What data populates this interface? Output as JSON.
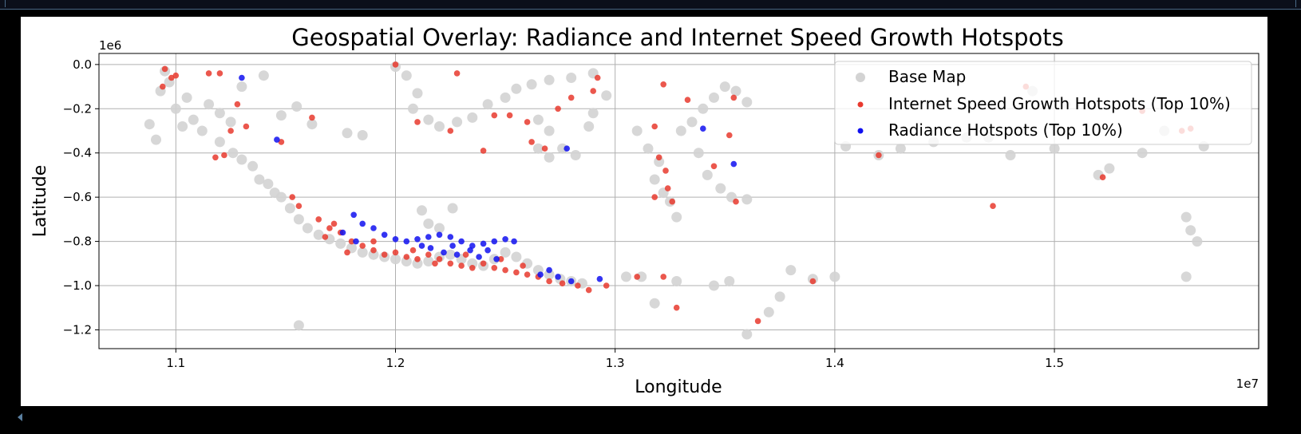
{
  "chart_data": {
    "type": "scatter",
    "title": "Geospatial Overlay: Radiance and Internet Speed Growth Hotspots",
    "xlabel": "Longitude",
    "ylabel": "Latitude",
    "x_offset_label": "1e7",
    "y_offset_label": "1e6",
    "xlim": [
      10650000,
      15930000
    ],
    "ylim": [
      -1285000,
      50000
    ],
    "x_ticks": [
      11000000,
      12000000,
      13000000,
      14000000,
      15000000
    ],
    "x_tick_labels": [
      "1.1",
      "1.2",
      "1.3",
      "1.4",
      "1.5"
    ],
    "y_ticks": [
      0,
      -200000,
      -400000,
      -600000,
      -800000,
      -1000000,
      -1200000
    ],
    "y_tick_labels": [
      "0.0",
      "−0.2",
      "−0.4",
      "−0.6",
      "−0.8",
      "−1.0",
      "−1.2"
    ],
    "grid": true,
    "legend_position": "top-right",
    "series": [
      {
        "name": "Base Map",
        "color": "#d3d3d3",
        "marker_size": "large",
        "points": [
          [
            10950000,
            -30000
          ],
          [
            10970000,
            -80000
          ],
          [
            10930000,
            -120000
          ],
          [
            11000000,
            -200000
          ],
          [
            11050000,
            -150000
          ],
          [
            11080000,
            -250000
          ],
          [
            11120000,
            -300000
          ],
          [
            11030000,
            -280000
          ],
          [
            10880000,
            -270000
          ],
          [
            10910000,
            -340000
          ],
          [
            11150000,
            -180000
          ],
          [
            11200000,
            -220000
          ],
          [
            11250000,
            -260000
          ],
          [
            11200000,
            -350000
          ],
          [
            11260000,
            -400000
          ],
          [
            11300000,
            -430000
          ],
          [
            11350000,
            -460000
          ],
          [
            11380000,
            -520000
          ],
          [
            11420000,
            -540000
          ],
          [
            11450000,
            -580000
          ],
          [
            11480000,
            -600000
          ],
          [
            11520000,
            -650000
          ],
          [
            11560000,
            -700000
          ],
          [
            11600000,
            -740000
          ],
          [
            11650000,
            -770000
          ],
          [
            11700000,
            -790000
          ],
          [
            11750000,
            -810000
          ],
          [
            11800000,
            -830000
          ],
          [
            11850000,
            -850000
          ],
          [
            11900000,
            -860000
          ],
          [
            11950000,
            -870000
          ],
          [
            12000000,
            -880000
          ],
          [
            12050000,
            -890000
          ],
          [
            12100000,
            -900000
          ],
          [
            12150000,
            -890000
          ],
          [
            12200000,
            -870000
          ],
          [
            12250000,
            -860000
          ],
          [
            12300000,
            -880000
          ],
          [
            12350000,
            -900000
          ],
          [
            12400000,
            -910000
          ],
          [
            12450000,
            -880000
          ],
          [
            12500000,
            -850000
          ],
          [
            12550000,
            -870000
          ],
          [
            12600000,
            -900000
          ],
          [
            12650000,
            -930000
          ],
          [
            12700000,
            -950000
          ],
          [
            12750000,
            -970000
          ],
          [
            12800000,
            -980000
          ],
          [
            12850000,
            -990000
          ],
          [
            12150000,
            -720000
          ],
          [
            12200000,
            -740000
          ],
          [
            12260000,
            -650000
          ],
          [
            12120000,
            -660000
          ],
          [
            11560000,
            -1180000
          ],
          [
            11400000,
            -50000
          ],
          [
            11300000,
            -100000
          ],
          [
            11480000,
            -230000
          ],
          [
            11550000,
            -190000
          ],
          [
            11620000,
            -270000
          ],
          [
            11780000,
            -310000
          ],
          [
            11850000,
            -320000
          ],
          [
            12000000,
            -10000
          ],
          [
            12050000,
            -50000
          ],
          [
            12100000,
            -130000
          ],
          [
            12080000,
            -200000
          ],
          [
            12150000,
            -250000
          ],
          [
            12200000,
            -280000
          ],
          [
            12280000,
            -260000
          ],
          [
            12350000,
            -240000
          ],
          [
            12420000,
            -180000
          ],
          [
            12500000,
            -150000
          ],
          [
            12550000,
            -110000
          ],
          [
            12620000,
            -90000
          ],
          [
            12700000,
            -70000
          ],
          [
            12800000,
            -60000
          ],
          [
            12900000,
            -40000
          ],
          [
            12650000,
            -250000
          ],
          [
            12700000,
            -300000
          ],
          [
            12650000,
            -380000
          ],
          [
            12700000,
            -420000
          ],
          [
            12760000,
            -380000
          ],
          [
            12820000,
            -410000
          ],
          [
            12880000,
            -280000
          ],
          [
            12900000,
            -220000
          ],
          [
            12960000,
            -140000
          ],
          [
            13100000,
            -300000
          ],
          [
            13150000,
            -380000
          ],
          [
            13200000,
            -440000
          ],
          [
            13180000,
            -520000
          ],
          [
            13220000,
            -580000
          ],
          [
            13250000,
            -620000
          ],
          [
            13280000,
            -690000
          ],
          [
            13300000,
            -300000
          ],
          [
            13350000,
            -260000
          ],
          [
            13400000,
            -200000
          ],
          [
            13450000,
            -150000
          ],
          [
            13500000,
            -100000
          ],
          [
            13550000,
            -120000
          ],
          [
            13600000,
            -170000
          ],
          [
            13380000,
            -400000
          ],
          [
            13420000,
            -500000
          ],
          [
            13480000,
            -560000
          ],
          [
            13530000,
            -600000
          ],
          [
            13600000,
            -610000
          ],
          [
            13050000,
            -960000
          ],
          [
            13120000,
            -960000
          ],
          [
            13180000,
            -1080000
          ],
          [
            13280000,
            -980000
          ],
          [
            13450000,
            -1000000
          ],
          [
            13520000,
            -980000
          ],
          [
            13700000,
            -1120000
          ],
          [
            13750000,
            -1050000
          ],
          [
            13800000,
            -930000
          ],
          [
            13900000,
            -970000
          ],
          [
            14000000,
            -960000
          ],
          [
            13600000,
            -1220000
          ],
          [
            14050000,
            -370000
          ],
          [
            14200000,
            -410000
          ],
          [
            14300000,
            -380000
          ],
          [
            14450000,
            -350000
          ],
          [
            14600000,
            -330000
          ],
          [
            14700000,
            -330000
          ],
          [
            14800000,
            -410000
          ],
          [
            14900000,
            -120000
          ],
          [
            15000000,
            -380000
          ],
          [
            15050000,
            -180000
          ],
          [
            15200000,
            -500000
          ],
          [
            15250000,
            -470000
          ],
          [
            15400000,
            -400000
          ],
          [
            15500000,
            -300000
          ],
          [
            15600000,
            -690000
          ],
          [
            15620000,
            -750000
          ],
          [
            15650000,
            -800000
          ],
          [
            15600000,
            -960000
          ],
          [
            15680000,
            -370000
          ]
        ]
      },
      {
        "name": "Internet Speed Growth Hotspots (Top 10%)",
        "color": "#e8392e",
        "marker_size": "small",
        "points": [
          [
            10950000,
            -20000
          ],
          [
            10980000,
            -60000
          ],
          [
            10940000,
            -100000
          ],
          [
            11000000,
            -50000
          ],
          [
            11150000,
            -40000
          ],
          [
            11200000,
            -40000
          ],
          [
            11280000,
            -180000
          ],
          [
            11320000,
            -280000
          ],
          [
            11250000,
            -300000
          ],
          [
            11180000,
            -420000
          ],
          [
            11220000,
            -410000
          ],
          [
            11480000,
            -350000
          ],
          [
            11530000,
            -600000
          ],
          [
            11560000,
            -640000
          ],
          [
            11620000,
            -240000
          ],
          [
            11650000,
            -700000
          ],
          [
            11700000,
            -740000
          ],
          [
            11750000,
            -760000
          ],
          [
            11800000,
            -800000
          ],
          [
            11850000,
            -820000
          ],
          [
            11900000,
            -840000
          ],
          [
            11950000,
            -860000
          ],
          [
            12000000,
            -850000
          ],
          [
            12050000,
            -870000
          ],
          [
            12100000,
            -880000
          ],
          [
            12150000,
            -860000
          ],
          [
            12200000,
            -880000
          ],
          [
            12250000,
            -900000
          ],
          [
            12300000,
            -910000
          ],
          [
            12350000,
            -920000
          ],
          [
            12400000,
            -900000
          ],
          [
            12450000,
            -920000
          ],
          [
            12500000,
            -930000
          ],
          [
            12550000,
            -940000
          ],
          [
            12600000,
            -950000
          ],
          [
            12650000,
            -960000
          ],
          [
            12700000,
            -980000
          ],
          [
            12760000,
            -990000
          ],
          [
            12830000,
            -1000000
          ],
          [
            12880000,
            -1020000
          ],
          [
            11720000,
            -720000
          ],
          [
            11680000,
            -780000
          ],
          [
            11780000,
            -850000
          ],
          [
            11900000,
            -800000
          ],
          [
            12080000,
            -840000
          ],
          [
            12180000,
            -900000
          ],
          [
            12320000,
            -860000
          ],
          [
            12480000,
            -880000
          ],
          [
            12580000,
            -910000
          ],
          [
            12000000,
            0
          ],
          [
            12100000,
            -260000
          ],
          [
            12250000,
            -300000
          ],
          [
            12280000,
            -40000
          ],
          [
            12400000,
            -390000
          ],
          [
            12450000,
            -230000
          ],
          [
            12520000,
            -230000
          ],
          [
            12600000,
            -260000
          ],
          [
            12620000,
            -350000
          ],
          [
            12680000,
            -380000
          ],
          [
            12740000,
            -200000
          ],
          [
            12800000,
            -150000
          ],
          [
            12900000,
            -120000
          ],
          [
            12920000,
            -60000
          ],
          [
            12960000,
            -1000000
          ],
          [
            13100000,
            -960000
          ],
          [
            13220000,
            -960000
          ],
          [
            13280000,
            -1100000
          ],
          [
            13220000,
            -90000
          ],
          [
            13180000,
            -280000
          ],
          [
            13200000,
            -420000
          ],
          [
            13230000,
            -480000
          ],
          [
            13240000,
            -560000
          ],
          [
            13180000,
            -600000
          ],
          [
            13260000,
            -620000
          ],
          [
            13330000,
            -160000
          ],
          [
            13450000,
            -460000
          ],
          [
            13520000,
            -320000
          ],
          [
            13550000,
            -620000
          ],
          [
            13540000,
            -150000
          ],
          [
            13650000,
            -1160000
          ],
          [
            13900000,
            -980000
          ],
          [
            14200000,
            -410000
          ],
          [
            14720000,
            -640000
          ],
          [
            14870000,
            -100000
          ],
          [
            15220000,
            -510000
          ],
          [
            15400000,
            -210000
          ],
          [
            15620000,
            -290000
          ],
          [
            15580000,
            -300000
          ]
        ]
      },
      {
        "name": "Radiance Hotspots (Top 10%)",
        "color": "#1010f0",
        "marker_size": "small",
        "points": [
          [
            11300000,
            -60000
          ],
          [
            11460000,
            -340000
          ],
          [
            11810000,
            -680000
          ],
          [
            11850000,
            -720000
          ],
          [
            11900000,
            -740000
          ],
          [
            11950000,
            -770000
          ],
          [
            12000000,
            -790000
          ],
          [
            12050000,
            -800000
          ],
          [
            12100000,
            -790000
          ],
          [
            12150000,
            -780000
          ],
          [
            12200000,
            -770000
          ],
          [
            12250000,
            -780000
          ],
          [
            12300000,
            -800000
          ],
          [
            12350000,
            -820000
          ],
          [
            12400000,
            -810000
          ],
          [
            12450000,
            -800000
          ],
          [
            12500000,
            -790000
          ],
          [
            12540000,
            -800000
          ],
          [
            12160000,
            -830000
          ],
          [
            12220000,
            -850000
          ],
          [
            12280000,
            -860000
          ],
          [
            12340000,
            -840000
          ],
          [
            12380000,
            -870000
          ],
          [
            12460000,
            -880000
          ],
          [
            11760000,
            -760000
          ],
          [
            11820000,
            -800000
          ],
          [
            12120000,
            -820000
          ],
          [
            12260000,
            -820000
          ],
          [
            12420000,
            -840000
          ],
          [
            12700000,
            -930000
          ],
          [
            12660000,
            -950000
          ],
          [
            12740000,
            -960000
          ],
          [
            12800000,
            -980000
          ],
          [
            12930000,
            -970000
          ],
          [
            12780000,
            -380000
          ],
          [
            13400000,
            -290000
          ],
          [
            13540000,
            -450000
          ]
        ]
      }
    ]
  }
}
